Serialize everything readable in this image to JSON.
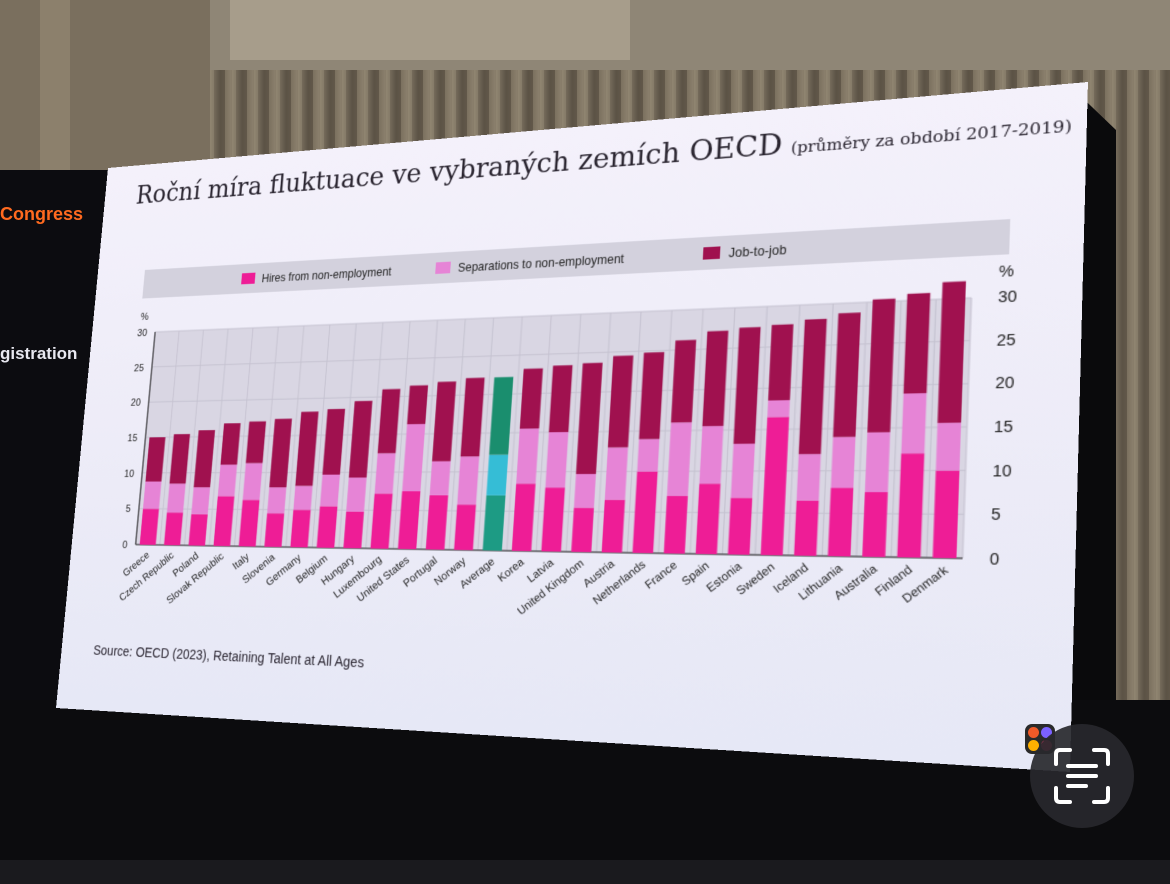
{
  "side_panel": {
    "top_text": "Congress",
    "mid_text": "gistration"
  },
  "slide": {
    "title": "Roční míra fluktuace ve vybraných zemích OECD",
    "subtitle": "(průměry za období 2017-2019)",
    "source": "Source: OECD (2023), Retaining Talent at All Ages"
  },
  "colors": {
    "hires": "#ee1d96",
    "separations": "#e684d6",
    "job_to_job": "#a0114f",
    "avg_hires": "#1d9b84",
    "avg_separations": "#35bdd6",
    "avg_job_to_job": "#1a8e6e"
  },
  "icons": {
    "app_logo": "app-logo-icon",
    "scan": "scan-text-icon"
  },
  "chart_data": {
    "type": "bar",
    "stacked": true,
    "title": "",
    "xlabel": "",
    "ylabel": "%",
    "y2label": "%",
    "ylim": [
      0,
      30
    ],
    "yticks": [
      0,
      5,
      10,
      15,
      20,
      25,
      30
    ],
    "legend_position": "top",
    "grid": true,
    "categories": [
      "Greece",
      "Czech Republic",
      "Poland",
      "Slovak Republic",
      "Italy",
      "Slovenia",
      "Germany",
      "Belgium",
      "Hungary",
      "Luxembourg",
      "United States",
      "Portugal",
      "Norway",
      "Average",
      "Korea",
      "Latvia",
      "United Kingdom",
      "Austria",
      "Netherlands",
      "France",
      "Spain",
      "Estonia",
      "Sweden",
      "Iceland",
      "Lithuania",
      "Australia",
      "Finland",
      "Denmark"
    ],
    "highlight_category": "Average",
    "series": [
      {
        "name": "Hires from non-employment",
        "values": [
          5.0,
          4.5,
          4.3,
          6.8,
          6.3,
          4.5,
          5.0,
          5.5,
          4.8,
          7.2,
          7.5,
          7.0,
          5.8,
          7.0,
          8.5,
          8.0,
          5.5,
          6.5,
          10.0,
          7.0,
          8.5,
          6.8,
          16.5,
          6.5,
          8.0,
          7.5,
          12.0,
          10.0
        ]
      },
      {
        "name": "Separations to non-employment",
        "values": [
          3.8,
          4.0,
          3.7,
          4.3,
          5.0,
          3.5,
          3.2,
          4.2,
          4.5,
          5.3,
          8.8,
          4.4,
          6.2,
          5.2,
          7.0,
          7.0,
          4.2,
          6.5,
          4.0,
          9.0,
          7.0,
          6.5,
          2.0,
          5.5,
          6.0,
          7.0,
          7.0,
          5.5
        ]
      },
      {
        "name": "Job-to-job",
        "values": [
          6.2,
          6.9,
          7.9,
          5.7,
          5.7,
          9.3,
          10.0,
          8.8,
          10.2,
          8.5,
          5.1,
          10.4,
          10.2,
          10.0,
          7.7,
          8.5,
          14.0,
          11.5,
          10.8,
          10.2,
          11.7,
          14.2,
          9.2,
          16.2,
          14.8,
          15.8,
          11.8,
          16.5
        ]
      }
    ]
  }
}
